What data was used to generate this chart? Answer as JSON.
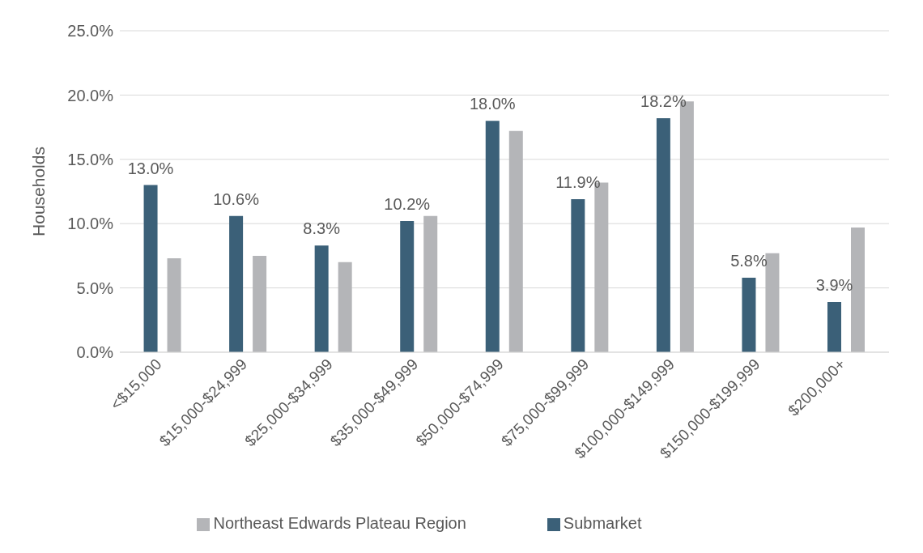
{
  "chart_data": {
    "type": "bar",
    "ylabel": "Households",
    "categories": [
      "<$15,000",
      "$15,000-$24,999",
      "$25,000-$34,999",
      "$35,000-$49,999",
      "$50,000-$74,999",
      "$75,000-$99,999",
      "$100,000-$149,999",
      "$150,000-$199,999",
      "$200,000+"
    ],
    "series": [
      {
        "name": "Submarket",
        "color": "#3b6078",
        "values": [
          13.0,
          10.6,
          8.3,
          10.2,
          18.0,
          11.9,
          18.2,
          5.8,
          3.9
        ],
        "value_labels": [
          "13.0%",
          "10.6%",
          "8.3%",
          "10.2%",
          "18.0%",
          "11.9%",
          "18.2%",
          "5.8%",
          "3.9%"
        ]
      },
      {
        "name": "Northeast Edwards Plateau Region",
        "color": "#b4b5b8",
        "values": [
          7.3,
          7.5,
          7.0,
          10.6,
          17.2,
          13.2,
          19.5,
          7.7,
          9.7
        ]
      }
    ],
    "ylim": [
      0,
      25
    ],
    "yticks": [
      {
        "value": 0,
        "label": "0.0%"
      },
      {
        "value": 5,
        "label": "5.0%"
      },
      {
        "value": 10,
        "label": "10.0%"
      },
      {
        "value": 15,
        "label": "15.0%"
      },
      {
        "value": 20,
        "label": "20.0%"
      },
      {
        "value": 25,
        "label": "25.0%"
      }
    ],
    "grid": "y",
    "legend": "bottom"
  }
}
